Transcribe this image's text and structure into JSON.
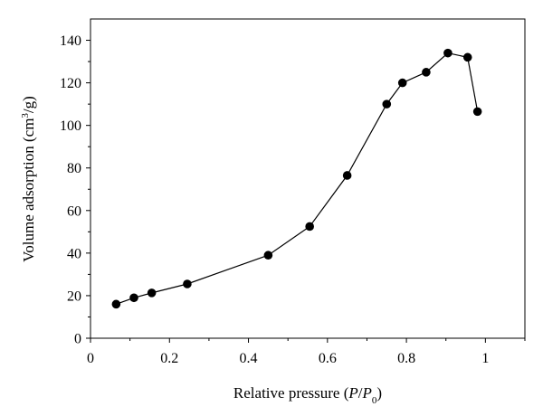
{
  "chart_data": {
    "type": "line",
    "xlabel_parts": {
      "prefix": "Relative pressure (",
      "p": "P",
      "slash": "/",
      "p0": "P",
      "sub0": "0",
      "suffix": ")"
    },
    "ylabel_parts": {
      "prefix": "Volume adsorption (cm",
      "sup": "3",
      "suffix": "/g)"
    },
    "xlim": [
      0,
      1.1
    ],
    "ylim": [
      0,
      150
    ],
    "x_ticks": [
      0,
      0.2,
      0.4,
      0.6,
      0.8,
      1
    ],
    "x_tick_labels": [
      "0",
      "0.2",
      "0.4",
      "0.6",
      "0.8",
      "1"
    ],
    "y_ticks": [
      0,
      20,
      40,
      60,
      80,
      100,
      120,
      140
    ],
    "y_tick_labels": [
      "0",
      "20",
      "40",
      "60",
      "80",
      "100",
      "120",
      "140"
    ],
    "grid": false,
    "series": [
      {
        "x": [
          0.065,
          0.11,
          0.155,
          0.245,
          0.45,
          0.555,
          0.65,
          0.75,
          0.79,
          0.85,
          0.905,
          0.955,
          0.98
        ],
        "y": [
          16,
          19,
          21.3,
          25.5,
          39,
          52.5,
          76.5,
          110,
          120,
          125,
          134,
          132,
          106.5
        ]
      }
    ]
  }
}
